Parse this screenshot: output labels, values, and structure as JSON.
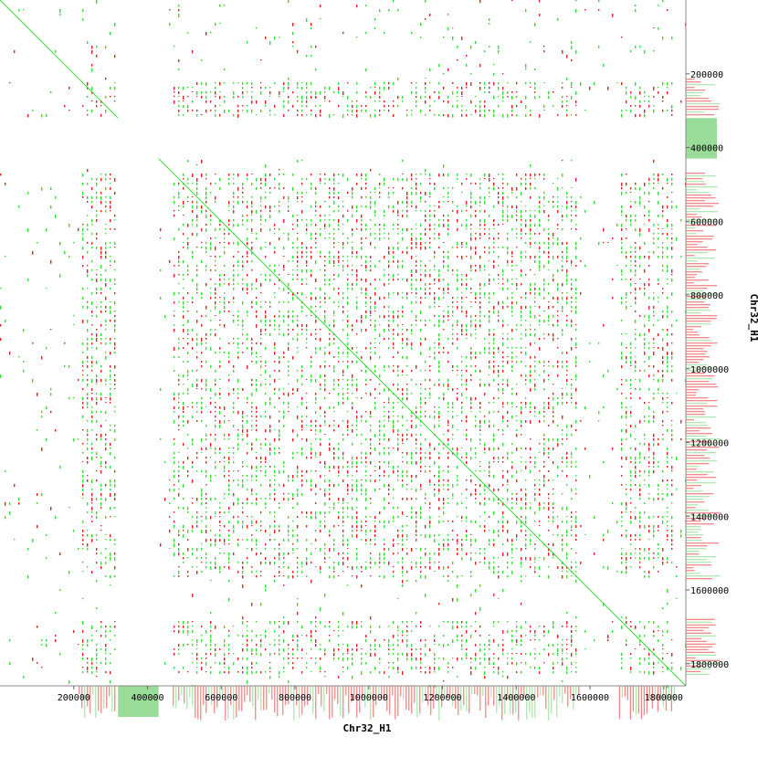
{
  "chart_data": {
    "type": "scatter",
    "title": "",
    "xlabel": "Chr32_H1",
    "ylabel": "Chr32_H1",
    "xlim": [
      0,
      1860000
    ],
    "ylim": [
      0,
      1860000
    ],
    "x_ticks": [
      200000,
      400000,
      600000,
      800000,
      1000000,
      1200000,
      1400000,
      1600000,
      1800000
    ],
    "y_ticks": [
      200000,
      400000,
      600000,
      800000,
      1000000,
      1200000,
      1400000,
      1600000,
      1800000
    ],
    "y_inverted": true,
    "colors": {
      "forward": "#33dd33",
      "reverse": "#dd2222",
      "coverage_forward": "#99dd99",
      "coverage_reverse": "#ee6666",
      "gap_fill": "#11ee11"
    },
    "series": [
      {
        "name": "forward",
        "color": "#33dd33"
      },
      {
        "name": "reverse",
        "color": "#dd2222"
      }
    ],
    "highlighted_blocks": [
      {
        "x": [
          320000,
          430000
        ],
        "y": [
          320000,
          430000
        ],
        "color": "#11ee11"
      }
    ],
    "repeat_block_ranges": [
      [
        215000,
        315000
      ],
      [
        470000,
        1570000
      ],
      [
        1680000,
        1830000
      ]
    ],
    "gap_ranges": [
      [
        320000,
        430000
      ]
    ]
  }
}
